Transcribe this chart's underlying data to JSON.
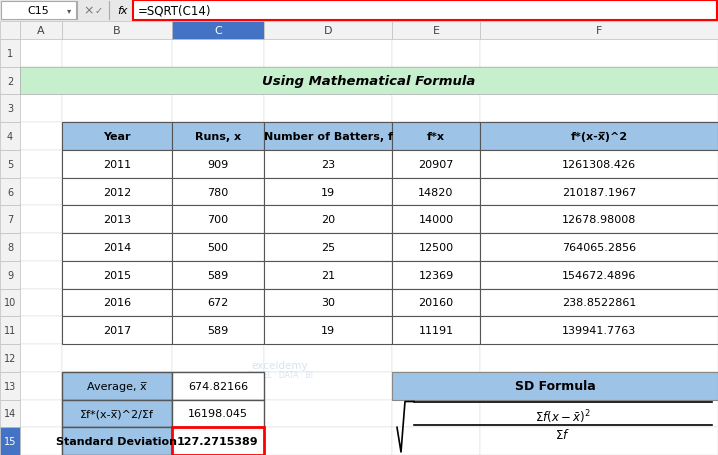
{
  "title": "Using Mathematical Formula",
  "title_bg": "#c6efce",
  "header_bg": "#9dc3e6",
  "col_headers": [
    "Year",
    "Runs, x",
    "Number of Batters, f",
    "f*x",
    "f*(x-x̅)^2"
  ],
  "rows": [
    [
      "2011",
      "909",
      "23",
      "20907",
      "1261308.426"
    ],
    [
      "2012",
      "780",
      "19",
      "14820",
      "210187.1967"
    ],
    [
      "2013",
      "700",
      "20",
      "14000",
      "12678.98008"
    ],
    [
      "2014",
      "500",
      "25",
      "12500",
      "764065.2856"
    ],
    [
      "2015",
      "589",
      "21",
      "12369",
      "154672.4896"
    ],
    [
      "2016",
      "672",
      "30",
      "20160",
      "238.8522861"
    ],
    [
      "2017",
      "589",
      "19",
      "11191",
      "139941.7763"
    ]
  ],
  "summary_labels": [
    "Average, x̅",
    "Σf*(x-x̅)^2/Σf",
    "Standard Deviation"
  ],
  "summary_values": [
    "674.82166",
    "16198.045",
    "127.2715389"
  ],
  "summary_bold": [
    false,
    false,
    true
  ],
  "formula_bar_text": "=SQRT(C14)",
  "cell_ref": "C15",
  "excel_col_headers": [
    "A",
    "B",
    "C",
    "D",
    "E",
    "F"
  ],
  "bg_color": "#ffffff",
  "grid_color": "#000000",
  "summary_bg": "#9dc3e6",
  "sd_formula_bg": "#9dc3e6",
  "cell_highlight_color": "#ff0000",
  "formula_bar_highlight": "#ff0000",
  "col_header_selected_bg": "#4472c4",
  "row_col_bg": "#e8e8e8",
  "title_fontsize": 9.5,
  "header_fontsize": 8,
  "data_fontsize": 8,
  "summary_fontsize": 8
}
